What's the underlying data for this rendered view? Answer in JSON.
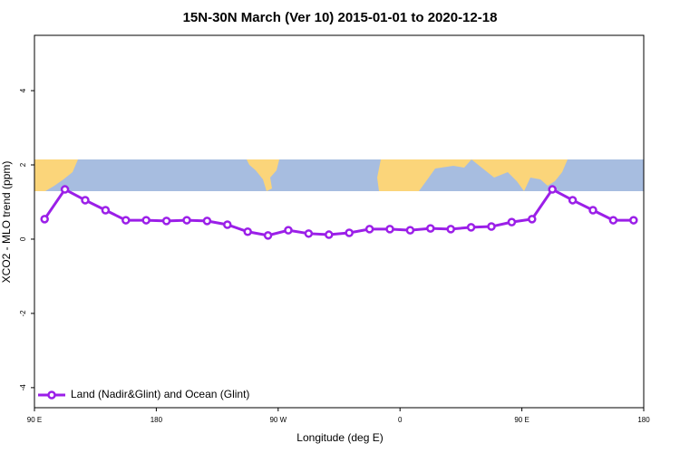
{
  "chart_data": {
    "type": "line",
    "title": "15N-30N March (Ver 10)   2015-01-01 to 2020-12-18",
    "x_label": "Longitude (deg E)",
    "y_label": "XCO2 - MLO trend (ppm)",
    "xlim": [
      90,
      540
    ],
    "xticks": [
      {
        "value": 90,
        "label": "90 E"
      },
      180,
      {
        "value": 270,
        "label": "90 W"
      },
      {
        "value": 360,
        "label": "0"
      },
      {
        "value": 450,
        "label": "90 E"
      },
      {
        "value": 540,
        "label": "180"
      }
    ],
    "ylim": [
      -4.54,
      5.49
    ],
    "yticks": [
      -4,
      -2,
      0,
      2,
      4
    ],
    "legend": "bottom left",
    "series": [
      {
        "name": "Land (Nadir&Glint) and Ocean (Glint)",
        "color": "#9b1fe8",
        "x": [
          97.5,
          112.5,
          127.5,
          142.5,
          157.5,
          172.5,
          187.5,
          202.5,
          217.5,
          232.5,
          247.5,
          262.5,
          277.5,
          292.5,
          307.5,
          322.5,
          337.5,
          352.5,
          367.5,
          382.5,
          397.5,
          412.5,
          427.5,
          442.5,
          457.5,
          472.5,
          487.5,
          502.5,
          517.5,
          532.5
        ],
        "values": [
          0.54,
          1.34,
          1.05,
          0.78,
          0.51,
          0.51,
          0.49,
          0.51,
          0.49,
          0.39,
          0.2,
          0.1,
          0.24,
          0.15,
          0.12,
          0.17,
          0.27,
          0.27,
          0.24,
          0.29,
          0.27,
          0.32,
          0.34,
          0.46,
          0.54,
          1.34,
          1.05,
          0.78,
          0.51,
          0.51
        ]
      }
    ]
  }
}
